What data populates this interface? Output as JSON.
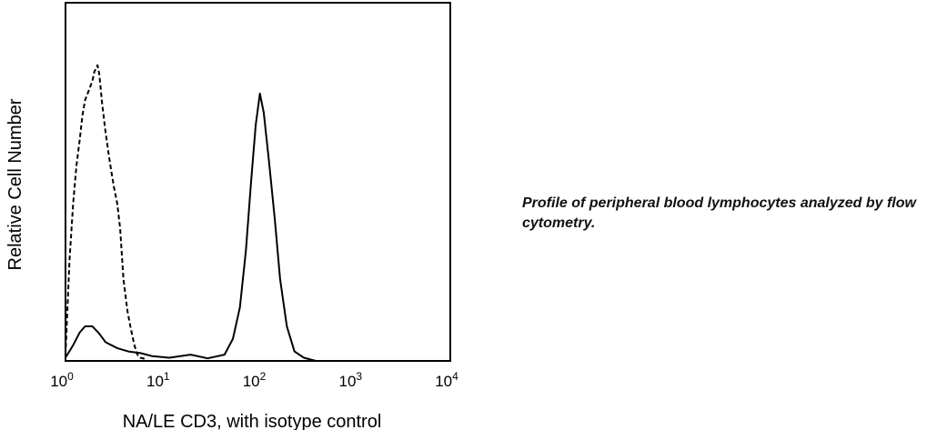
{
  "caption": "Profile of peripheral blood lymphocytes analyzed by flow cytometry.",
  "chart_data": {
    "type": "line",
    "title": "",
    "xlabel": "NA/LE CD3, with isotype control",
    "ylabel": "Relative Cell Number",
    "xscale": "log",
    "xlim": [
      1,
      10000
    ],
    "ylim": [
      0,
      1
    ],
    "grid": false,
    "x_ticks": [
      {
        "base": "10",
        "exp": "0",
        "value": 1
      },
      {
        "base": "10",
        "exp": "1",
        "value": 10
      },
      {
        "base": "10",
        "exp": "2",
        "value": 100
      },
      {
        "base": "10",
        "exp": "3",
        "value": 1000
      },
      {
        "base": "10",
        "exp": "4",
        "value": 10000
      }
    ],
    "series": [
      {
        "style": "dashed",
        "color": "#000000",
        "points": [
          [
            1.0,
            0.02
          ],
          [
            1.1,
            0.32
          ],
          [
            1.2,
            0.5
          ],
          [
            1.3,
            0.62
          ],
          [
            1.4,
            0.7
          ],
          [
            1.5,
            0.78
          ],
          [
            1.6,
            0.83
          ],
          [
            1.75,
            0.86
          ],
          [
            1.9,
            0.89
          ],
          [
            2.0,
            0.92
          ],
          [
            2.15,
            0.94
          ],
          [
            2.25,
            0.91
          ],
          [
            2.4,
            0.82
          ],
          [
            2.6,
            0.73
          ],
          [
            2.8,
            0.66
          ],
          [
            3.0,
            0.6
          ],
          [
            3.2,
            0.55
          ],
          [
            3.45,
            0.5
          ],
          [
            3.7,
            0.42
          ],
          [
            4.0,
            0.26
          ],
          [
            4.4,
            0.16
          ],
          [
            4.8,
            0.1
          ],
          [
            5.2,
            0.05
          ],
          [
            5.6,
            0.02
          ],
          [
            6.0,
            0.01
          ],
          [
            7.0,
            0.005
          ]
        ]
      },
      {
        "style": "solid",
        "color": "#000000",
        "points": [
          [
            1.0,
            0.01
          ],
          [
            1.2,
            0.05
          ],
          [
            1.4,
            0.09
          ],
          [
            1.6,
            0.11
          ],
          [
            1.9,
            0.11
          ],
          [
            2.2,
            0.09
          ],
          [
            2.6,
            0.06
          ],
          [
            3.0,
            0.05
          ],
          [
            3.5,
            0.04
          ],
          [
            4.5,
            0.03
          ],
          [
            6.0,
            0.025
          ],
          [
            8.0,
            0.015
          ],
          [
            12.0,
            0.01
          ],
          [
            20.0,
            0.02
          ],
          [
            30.0,
            0.008
          ],
          [
            45.0,
            0.02
          ],
          [
            55.0,
            0.07
          ],
          [
            65.0,
            0.17
          ],
          [
            75.0,
            0.35
          ],
          [
            85.0,
            0.57
          ],
          [
            95.0,
            0.75
          ],
          [
            105.0,
            0.85
          ],
          [
            115.0,
            0.79
          ],
          [
            130.0,
            0.64
          ],
          [
            150.0,
            0.45
          ],
          [
            170.0,
            0.26
          ],
          [
            200.0,
            0.11
          ],
          [
            240.0,
            0.03
          ],
          [
            300.0,
            0.01
          ],
          [
            400.0,
            0.0
          ]
        ]
      }
    ]
  }
}
